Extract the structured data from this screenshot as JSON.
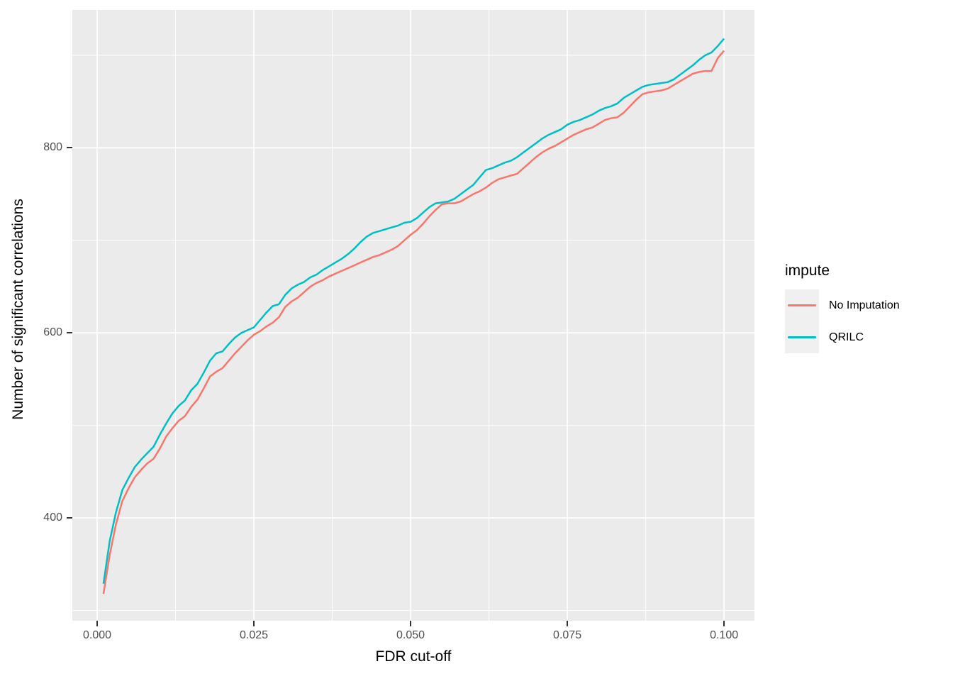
{
  "chart_data": {
    "type": "line",
    "title": "",
    "xlabel": "FDR cut-off",
    "ylabel": "Number of significant correlations",
    "legend_title": "impute",
    "legend_position": "right",
    "panel_bg": "#EBEBEB",
    "grid_color": "#FFFFFF",
    "tick_color": "#333333",
    "tick_label_color": "#4D4D4D",
    "grid": true,
    "xlim": [
      -0.00396,
      0.10485
    ],
    "ylim": [
      289,
      949
    ],
    "x_ticks": {
      "values": [
        0.0,
        0.025,
        0.05,
        0.075,
        0.1
      ],
      "labels": [
        "0.000",
        "0.025",
        "0.050",
        "0.075",
        "0.100"
      ]
    },
    "y_ticks": {
      "values": [
        400,
        600,
        800
      ],
      "labels": [
        "400",
        "600",
        "800"
      ]
    },
    "x_minor": [
      0.0125,
      0.0375,
      0.0625,
      0.0875
    ],
    "y_minor": [
      300,
      500,
      700,
      900
    ],
    "x": [
      0.001,
      0.002,
      0.003,
      0.004,
      0.005,
      0.006,
      0.007,
      0.008,
      0.009,
      0.01,
      0.011,
      0.012,
      0.013,
      0.014,
      0.015,
      0.016,
      0.017,
      0.018,
      0.019,
      0.02,
      0.021,
      0.022,
      0.023,
      0.024,
      0.025,
      0.026,
      0.027,
      0.028,
      0.029,
      0.03,
      0.031,
      0.032,
      0.033,
      0.034,
      0.035,
      0.036,
      0.037,
      0.038,
      0.039,
      0.04,
      0.041,
      0.042,
      0.043,
      0.044,
      0.045,
      0.046,
      0.047,
      0.048,
      0.049,
      0.05,
      0.051,
      0.052,
      0.053,
      0.054,
      0.055,
      0.056,
      0.057,
      0.058,
      0.059,
      0.06,
      0.061,
      0.062,
      0.063,
      0.064,
      0.065,
      0.066,
      0.067,
      0.068,
      0.069,
      0.07,
      0.071,
      0.072,
      0.073,
      0.074,
      0.075,
      0.076,
      0.077,
      0.078,
      0.079,
      0.08,
      0.081,
      0.082,
      0.083,
      0.084,
      0.085,
      0.086,
      0.087,
      0.088,
      0.089,
      0.09,
      0.091,
      0.092,
      0.093,
      0.094,
      0.095,
      0.096,
      0.097,
      0.098,
      0.099,
      0.1
    ],
    "series": [
      {
        "name": "No Imputation",
        "color": "#F8766D",
        "values": [
          318,
          360,
          393,
          418,
          432,
          444,
          452,
          459,
          464,
          475,
          488,
          497,
          505,
          510,
          520,
          528,
          540,
          553,
          558,
          562,
          570,
          578,
          585,
          592,
          598,
          602,
          607,
          611,
          617,
          628,
          634,
          638,
          644,
          650,
          654,
          657,
          661,
          664,
          667,
          670,
          673,
          676,
          679,
          682,
          684,
          687,
          690,
          694,
          700,
          706,
          711,
          718,
          726,
          733,
          739,
          740,
          740,
          742,
          746,
          750,
          753,
          757,
          762,
          766,
          768,
          770,
          772,
          778,
          784,
          790,
          795,
          799,
          802,
          806,
          810,
          814,
          817,
          820,
          822,
          826,
          830,
          832,
          833,
          838,
          845,
          852,
          858,
          860,
          861,
          862,
          864,
          868,
          872,
          876,
          880,
          882,
          883,
          883,
          897,
          905
        ]
      },
      {
        "name": "QRILC",
        "color": "#00BFC4",
        "values": [
          329,
          375,
          406,
          430,
          443,
          455,
          463,
          470,
          477,
          490,
          502,
          513,
          521,
          527,
          538,
          545,
          557,
          570,
          578,
          580,
          588,
          595,
          600,
          603,
          606,
          614,
          622,
          629,
          631,
          641,
          648,
          652,
          655,
          660,
          663,
          668,
          672,
          676,
          680,
          685,
          691,
          698,
          704,
          708,
          710,
          712,
          714,
          716,
          719,
          720,
          724,
          730,
          736,
          740,
          741,
          742,
          745,
          750,
          755,
          760,
          768,
          776,
          778,
          781,
          784,
          786,
          790,
          795,
          800,
          805,
          810,
          814,
          817,
          820,
          825,
          828,
          830,
          833,
          836,
          840,
          843,
          845,
          848,
          854,
          858,
          862,
          866,
          868,
          869,
          870,
          871,
          874,
          879,
          884,
          889,
          895,
          900,
          903,
          910,
          918
        ]
      }
    ]
  }
}
